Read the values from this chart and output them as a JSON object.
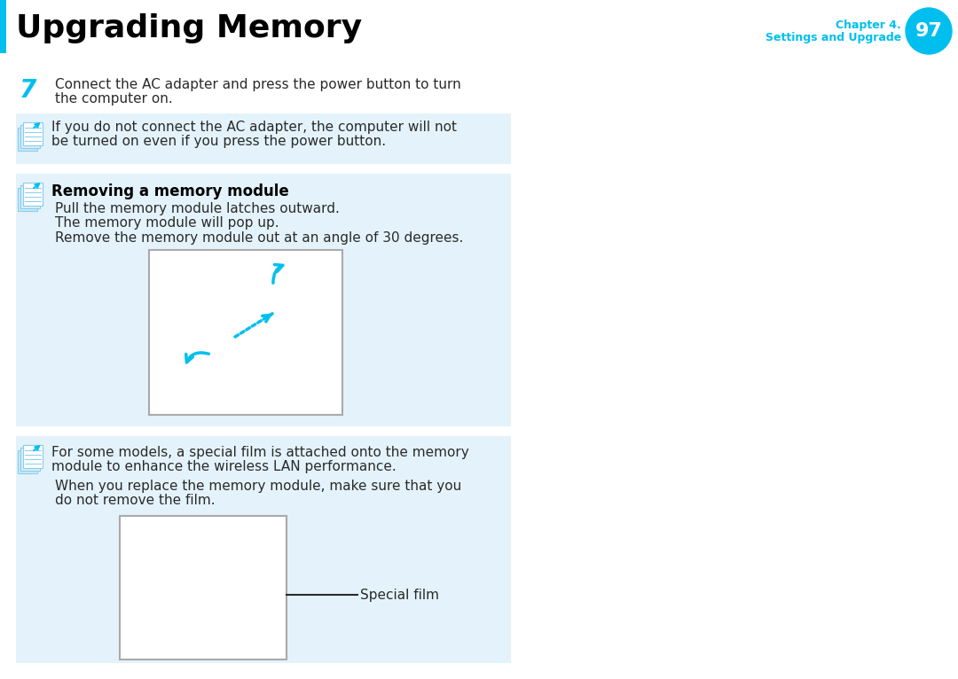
{
  "title": "Upgrading Memory",
  "chapter_line1": "Chapter 4.",
  "chapter_line2": "Settings and Upgrade",
  "page_number": "97",
  "cyan": "#00BFEF",
  "bg_blue": "#E4F3FB",
  "bg_white": "#FFFFFF",
  "text_dark": "#000000",
  "text_body": "#2A2A2A",
  "step7_line1": "Connect the AC adapter and press the power button to turn",
  "step7_line2": "the computer on.",
  "note1_line1": "If you do not connect the AC adapter, the computer will not",
  "note1_line2": "be turned on even if you press the power button.",
  "section_heading": "Removing a memory module",
  "section_p1": "Pull the memory module latches outward.",
  "section_p2": "The memory module will pop up.",
  "section_p3": "Remove the memory module out at an angle of 30 degrees.",
  "note2_line1": "For some models, a special film is attached onto the memory",
  "note2_line2": "module to enhance the wireless LAN performance.",
  "note2_line3": "When you replace the memory module, make sure that you",
  "note2_line4": "do not remove the film.",
  "special_film": "Special film",
  "title_fontsize": 26,
  "body_fontsize": 11,
  "heading_fontsize": 12
}
